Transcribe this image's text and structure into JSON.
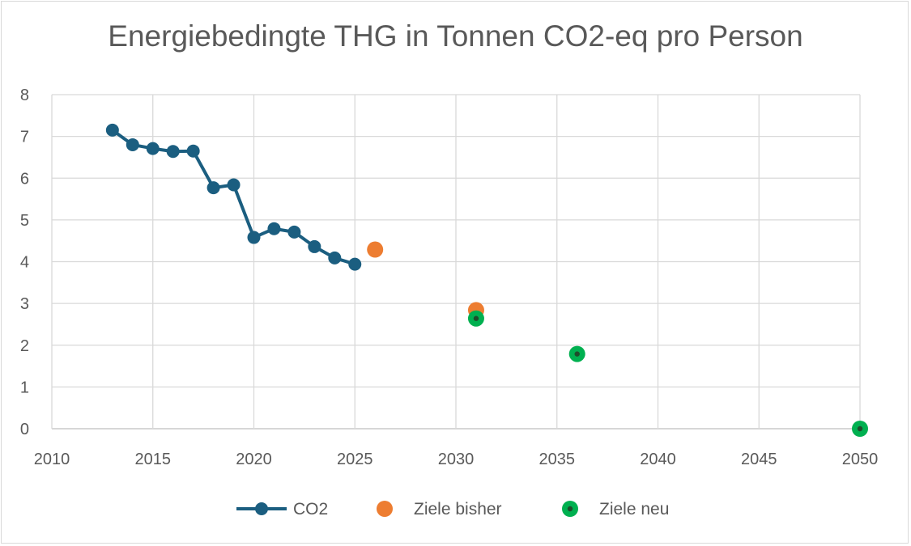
{
  "chart_data": {
    "type": "scatter",
    "title": "Energiebedingte THG in Tonnen CO2-eq pro Person",
    "xlim": [
      2010,
      2050
    ],
    "ylim": [
      0,
      8
    ],
    "x_ticks": [
      "2010",
      "2015",
      "2020",
      "2025",
      "2030",
      "2035",
      "2040",
      "2045",
      "2050"
    ],
    "y_ticks": [
      "0",
      "1",
      "2",
      "3",
      "4",
      "5",
      "6",
      "7",
      "8"
    ],
    "grid": true,
    "legend_position": "bottom",
    "series": [
      {
        "name": "CO2",
        "style": "line-markers",
        "color": "#1b5e80",
        "x": [
          2013,
          2014,
          2015,
          2016,
          2017,
          2018,
          2019,
          2020,
          2021,
          2022,
          2023,
          2024,
          2025
        ],
        "y": [
          7.15,
          6.8,
          6.71,
          6.64,
          6.65,
          5.77,
          5.84,
          4.58,
          4.79,
          4.71,
          4.36,
          4.09,
          3.94
        ]
      },
      {
        "name": "Ziele bisher",
        "style": "markers",
        "color": "#ed7d31",
        "x": [
          2026,
          2031
        ],
        "y": [
          4.29,
          2.84
        ]
      },
      {
        "name": "Ziele neu",
        "style": "markers-dot",
        "color": "#00b050",
        "x": [
          2031,
          2036,
          2050
        ],
        "y": [
          2.64,
          1.79,
          0.0
        ]
      }
    ]
  }
}
